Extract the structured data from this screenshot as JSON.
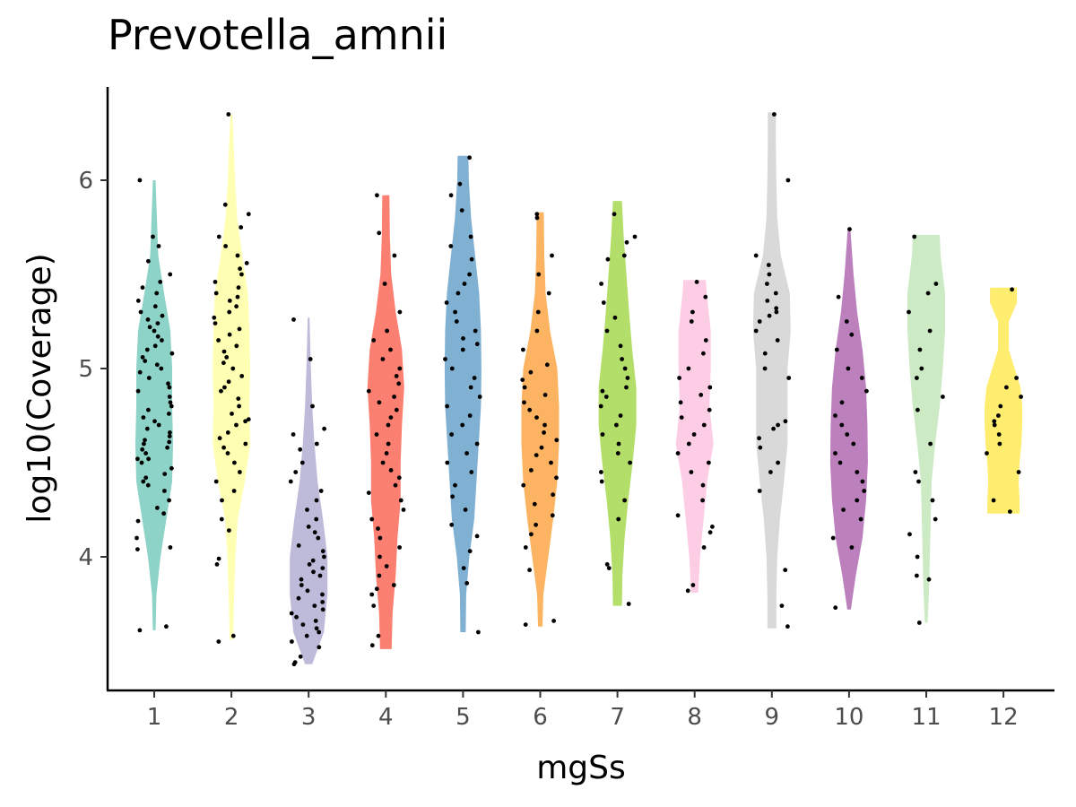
{
  "chart_data": {
    "type": "violin",
    "title": "Prevotella_amnii",
    "xlabel": "mgSs",
    "ylabel": "log10(Coverage)",
    "categories": [
      "1",
      "2",
      "3",
      "4",
      "5",
      "6",
      "7",
      "8",
      "9",
      "10",
      "11",
      "12"
    ],
    "y_ticks": [
      "4",
      "5",
      "6"
    ],
    "ylim": [
      3.3,
      6.5
    ],
    "grid": false,
    "legend": "none",
    "colors": [
      "#8DD3C7",
      "#FFFFB3",
      "#BEBADA",
      "#FB8072",
      "#80B1D3",
      "#FDB462",
      "#B3DE69",
      "#FCCDE5",
      "#D9D9D9",
      "#BC80BD",
      "#CCEBC5",
      "#FFED6F"
    ],
    "violins": [
      {
        "group": "1",
        "min": 3.61,
        "max": 6.0,
        "profile": [
          [
            3.61,
            0.03
          ],
          [
            3.8,
            0.05
          ],
          [
            4.0,
            0.14
          ],
          [
            4.2,
            0.27
          ],
          [
            4.4,
            0.4
          ],
          [
            4.6,
            0.42
          ],
          [
            4.8,
            0.4
          ],
          [
            5.0,
            0.4
          ],
          [
            5.2,
            0.36
          ],
          [
            5.4,
            0.22
          ],
          [
            5.6,
            0.09
          ],
          [
            5.8,
            0.06
          ],
          [
            6.0,
            0.03
          ]
        ]
      },
      {
        "group": "2",
        "min": 3.56,
        "max": 6.35,
        "profile": [
          [
            3.56,
            0.04
          ],
          [
            3.8,
            0.06
          ],
          [
            4.0,
            0.09
          ],
          [
            4.2,
            0.14
          ],
          [
            4.4,
            0.3
          ],
          [
            4.6,
            0.42
          ],
          [
            4.8,
            0.4
          ],
          [
            5.0,
            0.42
          ],
          [
            5.2,
            0.4
          ],
          [
            5.4,
            0.37
          ],
          [
            5.6,
            0.24
          ],
          [
            5.8,
            0.13
          ],
          [
            6.0,
            0.08
          ],
          [
            6.2,
            0.05
          ],
          [
            6.35,
            0.02
          ]
        ]
      },
      {
        "group": "3",
        "min": 3.43,
        "max": 5.27,
        "profile": [
          [
            3.43,
            0.08
          ],
          [
            3.6,
            0.34
          ],
          [
            3.8,
            0.42
          ],
          [
            4.0,
            0.42
          ],
          [
            4.2,
            0.32
          ],
          [
            4.4,
            0.2
          ],
          [
            4.6,
            0.13
          ],
          [
            4.8,
            0.08
          ],
          [
            5.0,
            0.05
          ],
          [
            5.27,
            0.02
          ]
        ]
      },
      {
        "group": "4",
        "min": 3.51,
        "max": 5.92,
        "profile": [
          [
            3.51,
            0.13
          ],
          [
            3.7,
            0.15
          ],
          [
            3.9,
            0.22
          ],
          [
            4.1,
            0.26
          ],
          [
            4.3,
            0.33
          ],
          [
            4.5,
            0.33
          ],
          [
            4.7,
            0.36
          ],
          [
            4.9,
            0.41
          ],
          [
            5.1,
            0.36
          ],
          [
            5.3,
            0.22
          ],
          [
            5.5,
            0.12
          ],
          [
            5.7,
            0.09
          ],
          [
            5.92,
            0.08
          ]
        ]
      },
      {
        "group": "5",
        "min": 3.6,
        "max": 6.13,
        "profile": [
          [
            3.6,
            0.06
          ],
          [
            3.8,
            0.07
          ],
          [
            4.0,
            0.14
          ],
          [
            4.2,
            0.25
          ],
          [
            4.4,
            0.3
          ],
          [
            4.6,
            0.35
          ],
          [
            4.8,
            0.4
          ],
          [
            5.0,
            0.41
          ],
          [
            5.2,
            0.4
          ],
          [
            5.4,
            0.36
          ],
          [
            5.6,
            0.27
          ],
          [
            5.8,
            0.18
          ],
          [
            6.0,
            0.13
          ],
          [
            6.13,
            0.12
          ]
        ]
      },
      {
        "group": "6",
        "min": 3.63,
        "max": 5.83,
        "profile": [
          [
            3.63,
            0.05
          ],
          [
            3.8,
            0.07
          ],
          [
            4.0,
            0.18
          ],
          [
            4.2,
            0.29
          ],
          [
            4.4,
            0.38
          ],
          [
            4.6,
            0.42
          ],
          [
            4.8,
            0.42
          ],
          [
            5.0,
            0.38
          ],
          [
            5.2,
            0.22
          ],
          [
            5.4,
            0.12
          ],
          [
            5.6,
            0.09
          ],
          [
            5.83,
            0.08
          ]
        ]
      },
      {
        "group": "7",
        "min": 3.74,
        "max": 5.89,
        "profile": [
          [
            3.74,
            0.1
          ],
          [
            3.9,
            0.11
          ],
          [
            4.1,
            0.16
          ],
          [
            4.3,
            0.24
          ],
          [
            4.5,
            0.34
          ],
          [
            4.7,
            0.42
          ],
          [
            4.9,
            0.42
          ],
          [
            5.1,
            0.33
          ],
          [
            5.3,
            0.26
          ],
          [
            5.5,
            0.2
          ],
          [
            5.7,
            0.14
          ],
          [
            5.89,
            0.1
          ]
        ]
      },
      {
        "group": "8",
        "min": 3.81,
        "max": 5.47,
        "profile": [
          [
            3.81,
            0.08
          ],
          [
            4.0,
            0.12
          ],
          [
            4.2,
            0.2
          ],
          [
            4.4,
            0.28
          ],
          [
            4.6,
            0.42
          ],
          [
            4.8,
            0.33
          ],
          [
            5.0,
            0.36
          ],
          [
            5.2,
            0.36
          ],
          [
            5.4,
            0.27
          ],
          [
            5.47,
            0.25
          ]
        ]
      },
      {
        "group": "9",
        "min": 3.62,
        "max": 6.36,
        "profile": [
          [
            3.62,
            0.1
          ],
          [
            3.8,
            0.1
          ],
          [
            4.0,
            0.12
          ],
          [
            4.2,
            0.18
          ],
          [
            4.4,
            0.27
          ],
          [
            4.6,
            0.35
          ],
          [
            4.8,
            0.35
          ],
          [
            5.0,
            0.35
          ],
          [
            5.2,
            0.42
          ],
          [
            5.4,
            0.4
          ],
          [
            5.6,
            0.2
          ],
          [
            5.8,
            0.12
          ],
          [
            6.0,
            0.1
          ],
          [
            6.2,
            0.09
          ],
          [
            6.36,
            0.09
          ]
        ]
      },
      {
        "group": "10",
        "min": 3.72,
        "max": 5.74,
        "profile": [
          [
            3.72,
            0.04
          ],
          [
            3.9,
            0.15
          ],
          [
            4.1,
            0.3
          ],
          [
            4.3,
            0.38
          ],
          [
            4.5,
            0.42
          ],
          [
            4.7,
            0.41
          ],
          [
            4.9,
            0.38
          ],
          [
            5.1,
            0.3
          ],
          [
            5.3,
            0.18
          ],
          [
            5.5,
            0.1
          ],
          [
            5.74,
            0.03
          ]
        ]
      },
      {
        "group": "11",
        "min": 3.65,
        "max": 5.71,
        "profile": [
          [
            3.65,
            0.03
          ],
          [
            3.8,
            0.06
          ],
          [
            4.0,
            0.08
          ],
          [
            4.2,
            0.1
          ],
          [
            4.4,
            0.12
          ],
          [
            4.6,
            0.2
          ],
          [
            4.8,
            0.3
          ],
          [
            5.0,
            0.37
          ],
          [
            5.2,
            0.42
          ],
          [
            5.4,
            0.42
          ],
          [
            5.6,
            0.32
          ],
          [
            5.71,
            0.3
          ]
        ]
      },
      {
        "group": "12",
        "min": 4.23,
        "max": 5.43,
        "profile": [
          [
            4.23,
            0.36
          ],
          [
            4.3,
            0.36
          ],
          [
            4.4,
            0.34
          ],
          [
            4.5,
            0.36
          ],
          [
            4.6,
            0.4
          ],
          [
            4.7,
            0.42
          ],
          [
            4.8,
            0.42
          ],
          [
            4.9,
            0.38
          ],
          [
            5.0,
            0.25
          ],
          [
            5.1,
            0.12
          ],
          [
            5.25,
            0.12
          ],
          [
            5.35,
            0.3
          ],
          [
            5.43,
            0.3
          ]
        ]
      }
    ],
    "points": [
      [
        [
          3.61,
          3.63,
          4.05,
          4.04,
          4.1,
          4.19,
          4.23,
          4.26,
          4.3,
          4.35,
          4.38,
          4.4,
          4.42,
          4.44,
          4.47,
          4.5,
          4.52,
          4.52,
          4.55,
          4.57,
          4.58,
          4.6,
          4.61,
          4.62,
          4.64,
          4.66,
          4.68,
          4.7,
          4.72,
          4.74,
          4.76,
          4.78,
          4.8,
          4.82,
          4.85,
          4.88,
          4.9,
          4.92,
          4.95,
          4.98,
          5.0,
          5.02,
          5.04,
          5.06,
          5.08,
          5.1,
          5.12,
          5.15,
          5.17,
          5.2,
          5.22,
          5.24,
          5.26,
          5.28,
          5.3,
          5.33,
          5.36,
          5.4,
          5.43,
          5.46,
          5.5,
          5.57,
          5.65,
          5.7,
          6.0
        ]
      ],
      [
        [
          3.55,
          3.58,
          3.96,
          3.99,
          4.14,
          4.2,
          4.3,
          4.35,
          4.4,
          4.45,
          4.5,
          4.55,
          4.58,
          4.6,
          4.63,
          4.66,
          4.7,
          4.72,
          4.73,
          4.76,
          4.8,
          4.84,
          4.88,
          4.9,
          4.93,
          4.96,
          5.0,
          5.03,
          5.06,
          5.09,
          5.12,
          5.15,
          5.18,
          5.21,
          5.24,
          5.27,
          5.3,
          5.33,
          5.36,
          5.38,
          5.4,
          5.43,
          5.46,
          5.5,
          5.53,
          5.56,
          5.6,
          5.65,
          5.7,
          5.75,
          5.82,
          5.87,
          6.35
        ]
      ],
      [
        [
          3.43,
          3.44,
          3.47,
          3.52,
          3.55,
          3.58,
          3.6,
          3.62,
          3.64,
          3.66,
          3.68,
          3.7,
          3.72,
          3.74,
          3.76,
          3.78,
          3.8,
          3.82,
          3.85,
          3.88,
          3.9,
          3.92,
          3.94,
          3.96,
          3.98,
          4.0,
          4.03,
          4.06,
          4.1,
          4.13,
          4.16,
          4.2,
          4.25,
          4.3,
          4.35,
          4.4,
          4.45,
          4.5,
          4.57,
          4.6,
          4.65,
          4.68,
          4.8,
          5.05,
          5.26
        ]
      ],
      [
        [
          3.53,
          3.58,
          3.74,
          3.8,
          3.83,
          3.85,
          3.9,
          3.95,
          4.0,
          4.05,
          4.1,
          4.15,
          4.2,
          4.25,
          4.3,
          4.34,
          4.38,
          4.42,
          4.46,
          4.5,
          4.55,
          4.6,
          4.65,
          4.7,
          4.74,
          4.78,
          4.82,
          4.85,
          4.88,
          4.92,
          4.96,
          5.0,
          5.05,
          5.1,
          5.15,
          5.2,
          5.3,
          5.45,
          5.6,
          5.72,
          5.92
        ]
      ],
      [
        [
          3.6,
          3.86,
          3.94,
          4.03,
          4.11,
          4.17,
          4.25,
          4.32,
          4.38,
          4.45,
          4.5,
          4.55,
          4.6,
          4.65,
          4.7,
          4.75,
          4.8,
          4.85,
          4.9,
          4.95,
          5.0,
          5.05,
          5.1,
          5.13,
          5.16,
          5.2,
          5.25,
          5.3,
          5.35,
          5.4,
          5.45,
          5.5,
          5.58,
          5.65,
          5.7,
          5.84,
          5.92,
          5.98,
          6.12
        ]
      ],
      [
        [
          3.64,
          3.66,
          3.93,
          4.05,
          4.12,
          4.17,
          4.22,
          4.28,
          4.33,
          4.38,
          4.42,
          4.46,
          4.5,
          4.54,
          4.58,
          4.62,
          4.66,
          4.7,
          4.74,
          4.78,
          4.82,
          4.86,
          4.9,
          4.94,
          4.98,
          5.02,
          5.1,
          5.2,
          5.3,
          5.4,
          5.5,
          5.6,
          5.8,
          5.82
        ]
      ],
      [
        [
          3.75,
          3.94,
          3.96,
          4.2,
          4.3,
          4.4,
          4.45,
          4.5,
          4.55,
          4.6,
          4.65,
          4.7,
          4.75,
          4.8,
          4.85,
          4.88,
          4.9,
          4.95,
          5.0,
          5.05,
          5.12,
          5.2,
          5.27,
          5.35,
          5.45,
          5.58,
          5.6,
          5.67,
          5.7,
          5.82
        ]
      ],
      [
        [
          3.82,
          3.85,
          4.05,
          4.13,
          4.16,
          4.22,
          4.3,
          4.38,
          4.45,
          4.5,
          4.55,
          4.6,
          4.65,
          4.7,
          4.74,
          4.78,
          4.82,
          4.86,
          4.9,
          4.95,
          5.0,
          5.08,
          5.15,
          5.25,
          5.3,
          5.38,
          5.46
        ]
      ],
      [
        [
          3.63,
          3.74,
          3.93,
          4.35,
          4.45,
          4.5,
          4.58,
          4.63,
          4.68,
          4.7,
          4.72,
          4.95,
          5.0,
          5.08,
          5.15,
          5.2,
          5.25,
          5.28,
          5.3,
          5.32,
          5.36,
          5.4,
          5.45,
          5.5,
          5.55,
          5.6,
          6.0,
          6.35
        ]
      ],
      [
        [
          3.73,
          4.05,
          4.1,
          4.2,
          4.25,
          4.3,
          4.35,
          4.4,
          4.45,
          4.5,
          4.55,
          4.6,
          4.65,
          4.7,
          4.75,
          4.82,
          4.88,
          4.95,
          5.0,
          5.1,
          5.18,
          5.25,
          5.38,
          5.74
        ]
      ],
      [
        [
          3.65,
          3.88,
          3.9,
          4.0,
          4.12,
          4.2,
          4.3,
          4.4,
          4.45,
          4.6,
          4.78,
          4.85,
          4.95,
          5.0,
          5.1,
          5.2,
          5.3,
          5.4,
          5.45,
          5.7
        ]
      ],
      [
        [
          4.24,
          4.3,
          4.45,
          4.55,
          4.6,
          4.65,
          4.7,
          4.72,
          4.75,
          4.8,
          4.85,
          4.9,
          4.95,
          5.42
        ]
      ]
    ]
  }
}
